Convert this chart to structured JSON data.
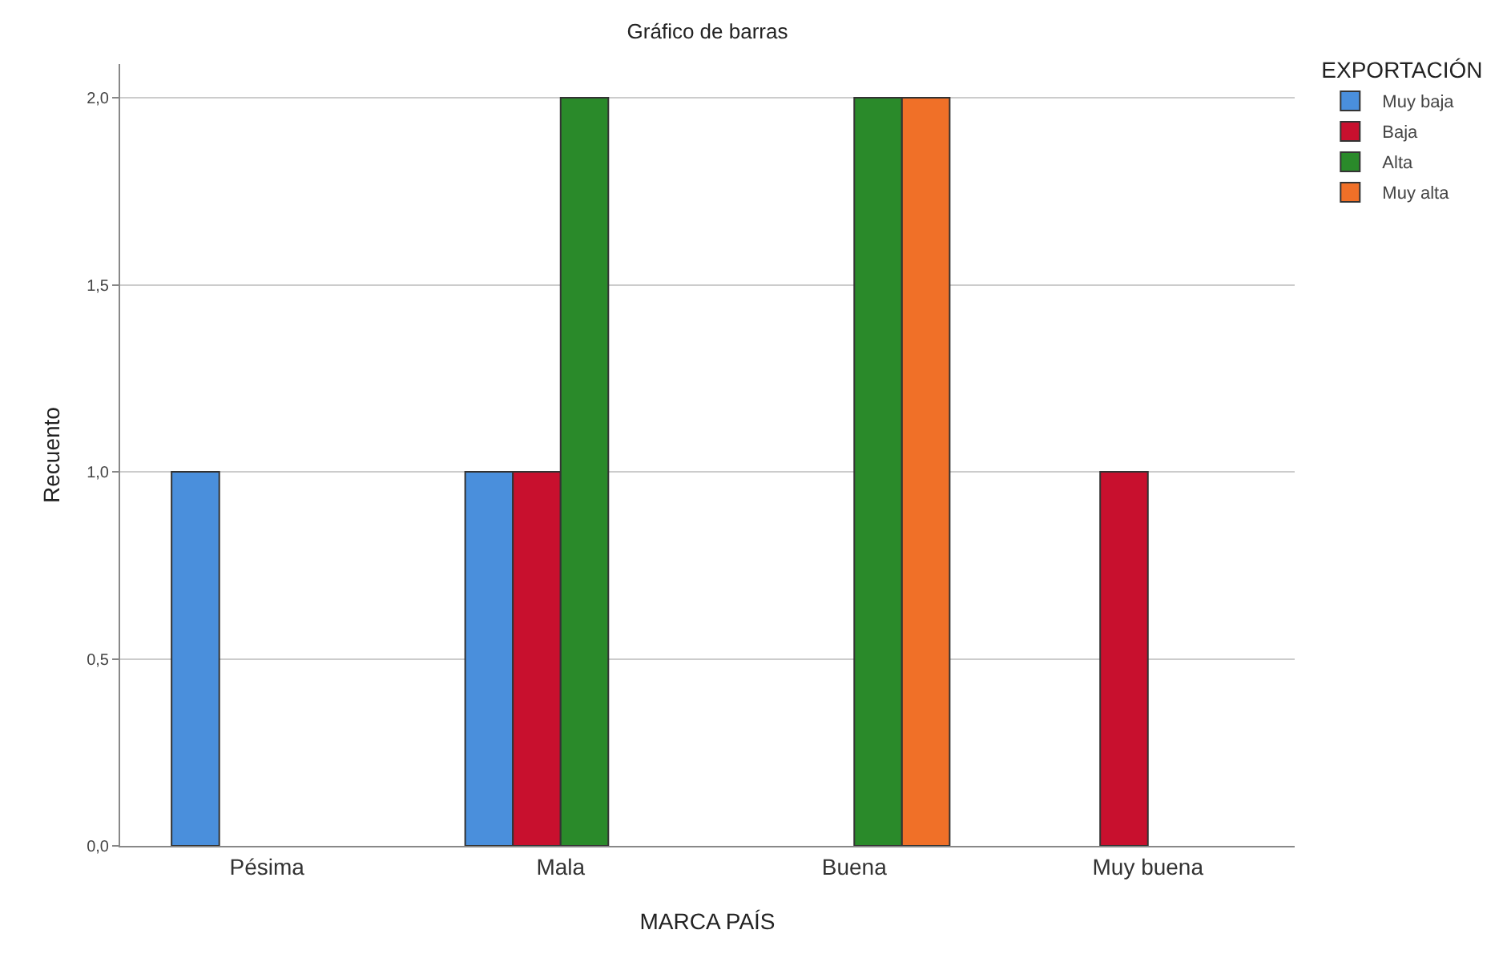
{
  "chart_data": {
    "type": "bar",
    "title": "Gráfico de barras",
    "xlabel": "MARCA PAÍS",
    "ylabel": "Recuento",
    "legend_title": "EXPORTACIÓN",
    "categories": [
      "Pésima",
      "Mala",
      "Buena",
      "Muy buena"
    ],
    "series": [
      {
        "name": "Muy baja",
        "color": "#4a8fdc",
        "values": [
          1,
          1,
          null,
          null
        ]
      },
      {
        "name": "Baja",
        "color": "#c8102e",
        "values": [
          null,
          1,
          null,
          1
        ]
      },
      {
        "name": "Alta",
        "color": "#2a8a2a",
        "values": [
          null,
          2,
          2,
          null
        ]
      },
      {
        "name": "Muy alta",
        "color": "#f07028",
        "values": [
          null,
          null,
          2,
          null
        ]
      }
    ],
    "ylim": [
      0,
      2.09
    ],
    "yticks": [
      {
        "value": 0,
        "label": "0,0"
      },
      {
        "value": 0.5,
        "label": "0,5"
      },
      {
        "value": 1,
        "label": "1,0"
      },
      {
        "value": 1.5,
        "label": "1,5"
      },
      {
        "value": 2,
        "label": "2,0"
      }
    ],
    "grid": "y",
    "legend": "top right"
  }
}
